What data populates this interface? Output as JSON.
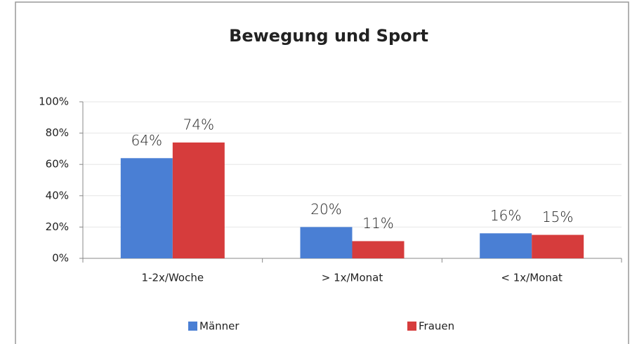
{
  "chart_data": {
    "type": "bar",
    "title": "Bewegung und Sport",
    "categories": [
      "1-2x/Woche",
      "> 1x/Monat",
      "< 1x/Monat"
    ],
    "series": [
      {
        "name": "Männer",
        "color": "#4a7fd4",
        "values": [
          64,
          20,
          16
        ],
        "value_labels": [
          "64%",
          "20%",
          "16%"
        ]
      },
      {
        "name": "Frauen",
        "color": "#d63c3c",
        "values": [
          74,
          11,
          15
        ],
        "value_labels": [
          "74%",
          "11%",
          "15%"
        ]
      }
    ],
    "ylim": [
      0,
      100
    ],
    "yticks": [
      {
        "value": 0,
        "label": "0%"
      },
      {
        "value": 20,
        "label": "20%"
      },
      {
        "value": 40,
        "label": "40%"
      },
      {
        "value": 60,
        "label": "60%"
      },
      {
        "value": 80,
        "label": "80%"
      },
      {
        "value": 100,
        "label": "100%"
      }
    ],
    "grid": true,
    "legend": "bottom"
  }
}
